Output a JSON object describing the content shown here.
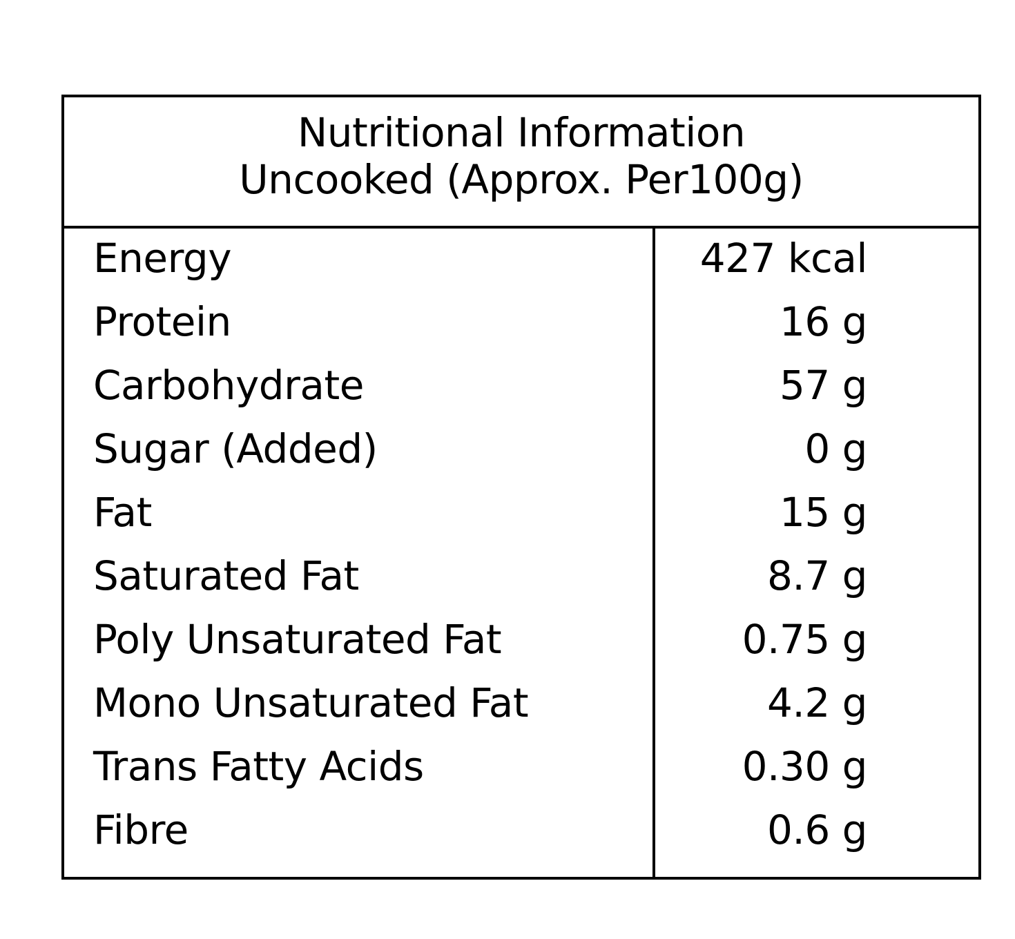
{
  "header": {
    "title": "Nutritional Information",
    "subtitle": "Uncooked (Approx. Per100g)"
  },
  "rows": [
    {
      "nutrient": "Energy",
      "amount": "427 kcal"
    },
    {
      "nutrient": "Protein",
      "amount": "16 g"
    },
    {
      "nutrient": "Carbohydrate",
      "amount": "57 g"
    },
    {
      "nutrient": "Sugar (Added)",
      "amount": "0 g"
    },
    {
      "nutrient": "Fat",
      "amount": "15 g"
    },
    {
      "nutrient": "Saturated Fat",
      "amount": "8.7 g"
    },
    {
      "nutrient": "Poly Unsaturated Fat",
      "amount": "0.75 g"
    },
    {
      "nutrient": "Mono Unsaturated Fat",
      "amount": "4.2 g"
    },
    {
      "nutrient": "Trans Fatty Acids",
      "amount": "0.30 g"
    },
    {
      "nutrient": "Fibre",
      "amount": "0.6 g"
    }
  ]
}
